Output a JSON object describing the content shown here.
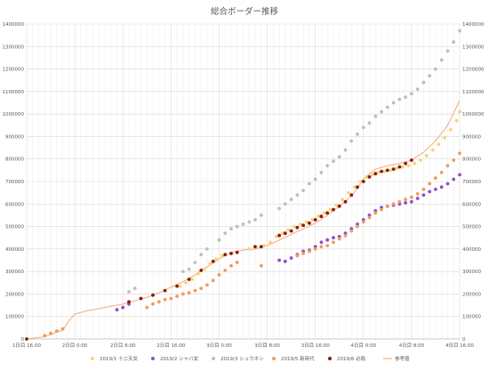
{
  "chart_data": {
    "type": "scatter",
    "title": "総合ボーダー推移",
    "xlabel": "",
    "ylabel": "",
    "ylim": [
      0,
      1400000
    ],
    "x_range": [
      0,
      72
    ],
    "grid": true,
    "legend_position": "bottom",
    "x_ticks": [
      {
        "x": 0,
        "label": "1日目 16:00"
      },
      {
        "x": 8,
        "label": "2日目 0:00"
      },
      {
        "x": 16,
        "label": "2日目 8:00"
      },
      {
        "x": 24,
        "label": "2日目 16:00"
      },
      {
        "x": 32,
        "label": "3日目 0:00"
      },
      {
        "x": 40,
        "label": "3日目 8:00"
      },
      {
        "x": 48,
        "label": "3日目 16:00"
      },
      {
        "x": 56,
        "label": "4日目 0:00"
      },
      {
        "x": 64,
        "label": "4日目 8:00"
      },
      {
        "x": 72,
        "label": "4日目 16:00"
      }
    ],
    "y_ticks": [
      {
        "v": 0,
        "label": "0"
      },
      {
        "v": 100000,
        "label": "100000"
      },
      {
        "v": 200000,
        "label": "200000"
      },
      {
        "v": 300000,
        "label": "300000"
      },
      {
        "v": 400000,
        "label": "400000"
      },
      {
        "v": 500000,
        "label": "500000"
      },
      {
        "v": 600000,
        "label": "600000"
      },
      {
        "v": 700000,
        "label": "700000"
      },
      {
        "v": 800000,
        "label": "800000"
      },
      {
        "v": 900000,
        "label": "900000"
      },
      {
        "v": 1000000,
        "label": "1000000"
      },
      {
        "v": 1100000,
        "label": "1100000"
      },
      {
        "v": 1200000,
        "label": "1200000"
      },
      {
        "v": 1300000,
        "label": "1300000"
      },
      {
        "v": 1400000,
        "label": "1400000"
      }
    ],
    "series": [
      {
        "name": "2019/1 十二天女",
        "color": "#f7d474",
        "kind": "points",
        "points": [
          [
            25.5,
            235000
          ],
          [
            26.5,
            250000
          ],
          [
            27.5,
            265000
          ],
          [
            28.5,
            290000
          ],
          [
            29.5,
            310000
          ],
          [
            30.5,
            335000
          ],
          [
            31.5,
            355000
          ],
          [
            32.5,
            370000
          ],
          [
            37,
            400000
          ],
          [
            38,
            410000
          ],
          [
            39.5,
            415000
          ],
          [
            40.5,
            430000
          ],
          [
            41.5,
            455000
          ],
          [
            42.5,
            470000
          ],
          [
            43.5,
            485000
          ],
          [
            44.5,
            500000
          ],
          [
            45.5,
            510000
          ],
          [
            46.5,
            520000
          ],
          [
            47.5,
            530000
          ],
          [
            48.5,
            545000
          ],
          [
            49.5,
            560000
          ],
          [
            50.5,
            575000
          ],
          [
            51.5,
            595000
          ],
          [
            52.5,
            620000
          ],
          [
            53.5,
            650000
          ],
          [
            54.5,
            675000
          ],
          [
            55.5,
            700000
          ],
          [
            56.5,
            720000
          ],
          [
            57.5,
            730000
          ],
          [
            58.5,
            740000
          ],
          [
            59.5,
            745000
          ],
          [
            60.5,
            750000
          ],
          [
            61.5,
            758000
          ],
          [
            62.5,
            765000
          ],
          [
            63.5,
            770000
          ],
          [
            64.5,
            780000
          ],
          [
            65.5,
            795000
          ],
          [
            66.5,
            815000
          ],
          [
            67.5,
            840000
          ],
          [
            68.5,
            865000
          ],
          [
            69.5,
            895000
          ],
          [
            70.5,
            930000
          ],
          [
            71.5,
            970000
          ],
          [
            72,
            1010000
          ]
        ]
      },
      {
        "name": "2019/2 シャバ女",
        "color": "#8e4fc4",
        "kind": "points",
        "points": [
          [
            15,
            130000
          ],
          [
            16,
            140000
          ],
          [
            17,
            155000
          ],
          [
            42,
            350000
          ],
          [
            43,
            345000
          ],
          [
            44,
            360000
          ],
          [
            45,
            375000
          ],
          [
            46,
            390000
          ],
          [
            47,
            395000
          ],
          [
            48,
            410000
          ],
          [
            49,
            430000
          ],
          [
            50,
            440000
          ],
          [
            51,
            450000
          ],
          [
            52,
            455000
          ],
          [
            53,
            470000
          ],
          [
            54,
            490000
          ],
          [
            55,
            510000
          ],
          [
            56,
            530000
          ],
          [
            57,
            550000
          ],
          [
            58,
            570000
          ],
          [
            59,
            585000
          ],
          [
            60,
            590000
          ],
          [
            61,
            595000
          ],
          [
            62,
            600000
          ],
          [
            63,
            605000
          ],
          [
            64,
            610000
          ],
          [
            65,
            625000
          ],
          [
            66,
            640000
          ],
          [
            67,
            655000
          ],
          [
            68,
            665000
          ],
          [
            69,
            675000
          ],
          [
            70,
            690000
          ],
          [
            71,
            710000
          ],
          [
            72,
            730000
          ]
        ]
      },
      {
        "name": "2019/3 シュウネン",
        "color": "#bebebe",
        "kind": "points",
        "points": [
          [
            17,
            210000
          ],
          [
            18,
            225000
          ],
          [
            26,
            300000
          ],
          [
            27,
            310000
          ],
          [
            28,
            340000
          ],
          [
            29,
            375000
          ],
          [
            30,
            400000
          ],
          [
            32,
            440000
          ],
          [
            33,
            470000
          ],
          [
            34,
            490000
          ],
          [
            35,
            500000
          ],
          [
            36,
            510000
          ],
          [
            37,
            520000
          ],
          [
            38,
            530000
          ],
          [
            39,
            550000
          ],
          [
            42,
            580000
          ],
          [
            43,
            600000
          ],
          [
            44,
            620000
          ],
          [
            45,
            640000
          ],
          [
            46,
            660000
          ],
          [
            47,
            690000
          ],
          [
            48,
            710000
          ],
          [
            49,
            740000
          ],
          [
            50,
            770000
          ],
          [
            51,
            790000
          ],
          [
            52,
            810000
          ],
          [
            53,
            840000
          ],
          [
            54,
            880000
          ],
          [
            55,
            910000
          ],
          [
            56,
            940000
          ],
          [
            57,
            960000
          ],
          [
            58,
            990000
          ],
          [
            59,
            1010000
          ],
          [
            60,
            1030000
          ],
          [
            61,
            1050000
          ],
          [
            62,
            1065000
          ],
          [
            63,
            1075000
          ],
          [
            64,
            1090000
          ],
          [
            65,
            1110000
          ],
          [
            66,
            1140000
          ],
          [
            67,
            1170000
          ],
          [
            68,
            1200000
          ],
          [
            69,
            1240000
          ],
          [
            70,
            1280000
          ],
          [
            71,
            1320000
          ],
          [
            72,
            1370000
          ]
        ]
      },
      {
        "name": "2019/5 新時代",
        "color": "#f09b5a",
        "kind": "points",
        "points": [
          [
            3,
            15000
          ],
          [
            4,
            25000
          ],
          [
            5,
            35000
          ],
          [
            6,
            45000
          ],
          [
            20,
            140000
          ],
          [
            21,
            155000
          ],
          [
            22,
            165000
          ],
          [
            23,
            175000
          ],
          [
            24,
            180000
          ],
          [
            25,
            190000
          ],
          [
            26,
            200000
          ],
          [
            27,
            205000
          ],
          [
            28,
            215000
          ],
          [
            29,
            225000
          ],
          [
            30,
            240000
          ],
          [
            31,
            260000
          ],
          [
            32,
            285000
          ],
          [
            33,
            305000
          ],
          [
            34,
            325000
          ],
          [
            35,
            340000
          ],
          [
            39,
            325000
          ],
          [
            45,
            370000
          ],
          [
            46,
            380000
          ],
          [
            47,
            390000
          ],
          [
            48,
            400000
          ],
          [
            49,
            410000
          ],
          [
            50,
            415000
          ],
          [
            51,
            430000
          ],
          [
            52,
            445000
          ],
          [
            53,
            460000
          ],
          [
            54,
            480000
          ],
          [
            55,
            500000
          ],
          [
            56,
            520000
          ],
          [
            57,
            540000
          ],
          [
            58,
            560000
          ],
          [
            59,
            575000
          ],
          [
            60,
            590000
          ],
          [
            61,
            600000
          ],
          [
            62,
            610000
          ],
          [
            63,
            620000
          ],
          [
            64,
            630000
          ],
          [
            65,
            645000
          ],
          [
            66,
            665000
          ],
          [
            67,
            690000
          ],
          [
            68,
            715000
          ],
          [
            69,
            740000
          ],
          [
            70,
            770000
          ],
          [
            71,
            795000
          ],
          [
            72,
            825000
          ]
        ]
      },
      {
        "name": "2019/6 必殺",
        "color": "#8b1a10",
        "kind": "points",
        "points": [
          [
            0,
            0
          ],
          [
            17,
            165000
          ],
          [
            19,
            180000
          ],
          [
            21,
            195000
          ],
          [
            23,
            215000
          ],
          [
            25,
            235000
          ],
          [
            27,
            265000
          ],
          [
            29,
            305000
          ],
          [
            31,
            345000
          ],
          [
            33,
            375000
          ],
          [
            34,
            380000
          ],
          [
            35,
            385000
          ],
          [
            38,
            410000
          ],
          [
            39,
            410000
          ],
          [
            42,
            460000
          ],
          [
            43,
            470000
          ],
          [
            44,
            480000
          ],
          [
            45,
            495000
          ],
          [
            46,
            505000
          ],
          [
            47,
            515000
          ],
          [
            48,
            530000
          ],
          [
            49,
            545000
          ],
          [
            50,
            560000
          ],
          [
            51,
            575000
          ],
          [
            52,
            590000
          ],
          [
            53,
            610000
          ],
          [
            54,
            640000
          ],
          [
            55,
            675000
          ],
          [
            56,
            700000
          ],
          [
            57,
            720000
          ],
          [
            58,
            735000
          ],
          [
            59,
            745000
          ],
          [
            60,
            750000
          ],
          [
            61,
            755000
          ],
          [
            62,
            765000
          ],
          [
            63,
            780000
          ],
          [
            64,
            795000
          ]
        ]
      },
      {
        "name": "参考値",
        "color": "#f2b183",
        "kind": "line",
        "points": [
          [
            0,
            0
          ],
          [
            3,
            10000
          ],
          [
            6,
            40000
          ],
          [
            7,
            80000
          ],
          [
            8,
            110000
          ],
          [
            10,
            125000
          ],
          [
            12,
            135000
          ],
          [
            14,
            145000
          ],
          [
            16,
            155000
          ],
          [
            18,
            170000
          ],
          [
            20,
            185000
          ],
          [
            22,
            205000
          ],
          [
            24,
            230000
          ],
          [
            26,
            255000
          ],
          [
            28,
            285000
          ],
          [
            30,
            320000
          ],
          [
            32,
            355000
          ],
          [
            34,
            385000
          ],
          [
            36,
            395000
          ],
          [
            38,
            400000
          ],
          [
            40,
            415000
          ],
          [
            42,
            440000
          ],
          [
            44,
            465000
          ],
          [
            46,
            490000
          ],
          [
            48,
            515000
          ],
          [
            50,
            550000
          ],
          [
            52,
            590000
          ],
          [
            54,
            635000
          ],
          [
            55,
            670000
          ],
          [
            56,
            710000
          ],
          [
            57,
            735000
          ],
          [
            58,
            755000
          ],
          [
            60,
            770000
          ],
          [
            62,
            780000
          ],
          [
            64,
            795000
          ],
          [
            66,
            830000
          ],
          [
            68,
            880000
          ],
          [
            70,
            950000
          ],
          [
            72,
            1060000
          ]
        ]
      }
    ]
  }
}
